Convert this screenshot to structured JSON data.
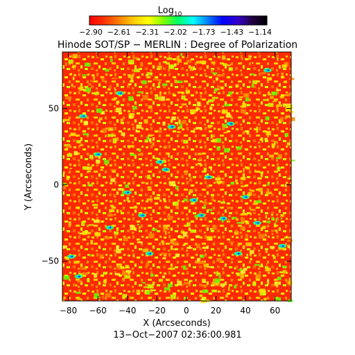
{
  "chart_data": {
    "type": "heatmap",
    "title": "Hinode SOT/SP − MERLIN : Degree of Polarization",
    "xlabel": "X (Arcseconds)",
    "ylabel": "Y (Arcseconds)",
    "xlim": [
      -84,
      71
    ],
    "ylim": [
      -76,
      87
    ],
    "x_ticks": [
      -80,
      -60,
      -40,
      -20,
      0,
      20,
      40,
      60
    ],
    "y_ticks": [
      -50,
      0,
      50
    ],
    "colorbar": {
      "label_main": "Log",
      "label_sub": "10",
      "ticks": [
        "−2.90",
        "−2.61",
        "−2.31",
        "−2.02",
        "−1.73",
        "−1.43",
        "−1.14"
      ],
      "range": [
        -2.9,
        -1.14
      ],
      "colors": [
        "#ff0000",
        "#ff3300",
        "#ff8000",
        "#ffcc00",
        "#ffff00",
        "#80ff00",
        "#00ff66",
        "#00ffff",
        "#0080ff",
        "#0000ff",
        "#3300cc",
        "#220044",
        "#000000"
      ]
    },
    "timestamp": "13−Oct−2007 02:36:00.981",
    "value_distribution": "mostly near −2.90 (red/orange), scattered yellow/green, sparse cyan/blue features"
  }
}
